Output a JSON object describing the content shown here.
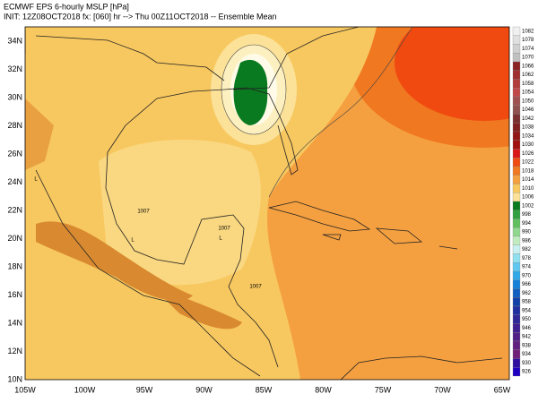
{
  "header": {
    "title": "ECMWF EPS 6-hourly MSLP [hPa]",
    "subtitle": "INIT: 12Z08OCT2018 fx: [060] hr --> Thu 00Z11OCT2018 -- Ensemble Mean"
  },
  "axes": {
    "lat_labels": [
      "34N",
      "32N",
      "30N",
      "28N",
      "26N",
      "24N",
      "22N",
      "20N",
      "18N",
      "16N",
      "14N",
      "12N",
      "10N"
    ],
    "lon_labels": [
      "105W",
      "100W",
      "95W",
      "90W",
      "85W",
      "80W",
      "75W",
      "70W",
      "65W"
    ]
  },
  "map_labels": [
    "1007",
    "1007",
    "1007",
    "L",
    "L",
    "L"
  ],
  "colorbar": {
    "labels": [
      1082,
      1078,
      1074,
      1070,
      1066,
      1062,
      1058,
      1054,
      1050,
      1046,
      1042,
      1038,
      1034,
      1030,
      1026,
      1022,
      1018,
      1014,
      1010,
      1006,
      1002,
      998,
      994,
      990,
      986,
      982,
      978,
      974,
      970,
      966,
      962,
      958,
      954,
      950,
      946,
      942,
      938,
      934,
      930,
      926
    ],
    "colors": [
      "#f0f0f0",
      "#e0e0e0",
      "#d0d0d0",
      "#c0c0c0",
      "#8b2323",
      "#9e3030",
      "#b03c3c",
      "#c04848",
      "#a05050",
      "#905050",
      "#7a3030",
      "#802020",
      "#901818",
      "#a01010",
      "#d81818",
      "#f04a10",
      "#f07820",
      "#f5a040",
      "#f8c860",
      "#fbe298",
      "#0a7a20",
      "#30a040",
      "#60c060",
      "#90d890",
      "#c0ecc0",
      "#c8f0f0",
      "#90e0f0",
      "#60c8f0",
      "#30a8e8",
      "#1880d8",
      "#1060c0",
      "#1040a8",
      "#2030a0",
      "#302898",
      "#402090",
      "#502088",
      "#602080",
      "#702078",
      "#3010a0",
      "#2000c0"
    ]
  }
}
